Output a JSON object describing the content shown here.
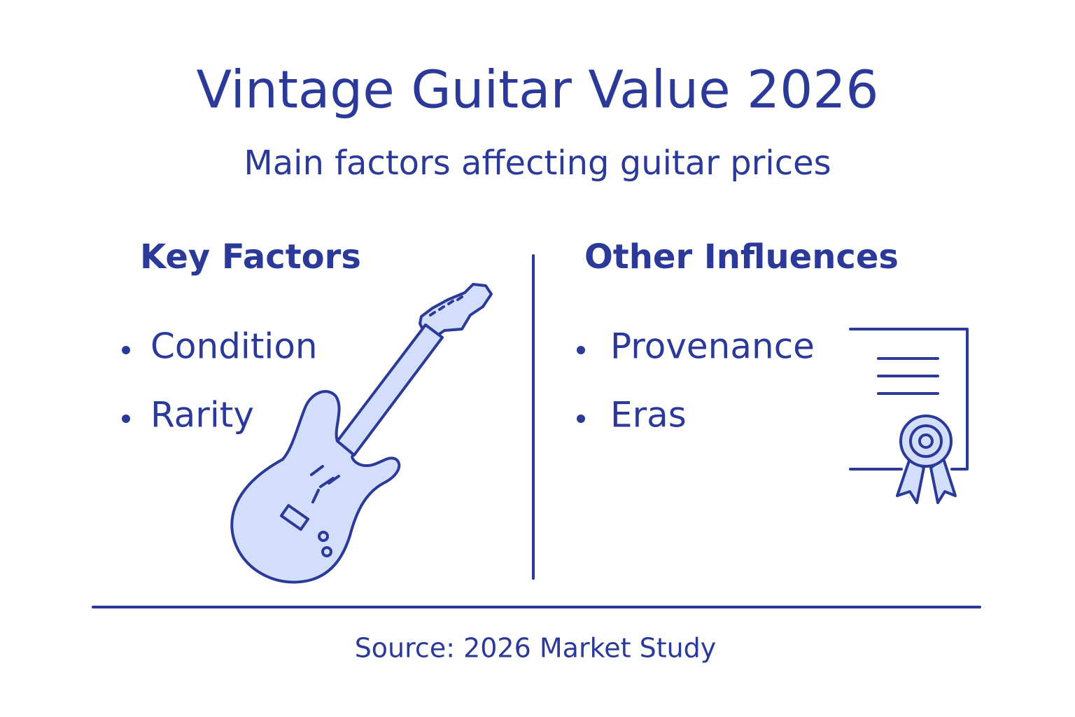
{
  "header": {
    "title": "Vintage Guitar Value 2026",
    "subtitle": "Main factors affecting guitar prices"
  },
  "columns": [
    {
      "heading": "Key Factors",
      "items": [
        "Condition",
        "Rarity"
      ]
    },
    {
      "heading": "Other Influences",
      "items": [
        "Provenance",
        "Eras"
      ]
    }
  ],
  "footer": {
    "source": "Source: 2026 Market Study"
  }
}
